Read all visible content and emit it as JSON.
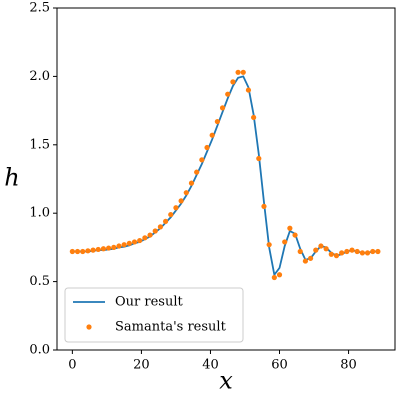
{
  "chart_data": {
    "type": "line",
    "xlabel": "x",
    "ylabel": "h",
    "x": [
      0,
      1.5,
      3,
      4.5,
      6,
      7.5,
      9,
      10.5,
      12,
      13.5,
      15,
      16.5,
      18,
      19.5,
      21,
      22.5,
      24,
      25.5,
      27,
      28.5,
      30,
      31.5,
      33,
      34.5,
      36,
      37.5,
      39,
      40.5,
      42,
      43.5,
      45,
      46.5,
      48,
      49.5,
      51,
      52.5,
      54,
      55.5,
      57,
      58.5,
      60,
      61.5,
      63,
      64.5,
      66,
      67.5,
      69,
      70.5,
      72,
      73.5,
      75,
      76.5,
      78,
      79.5,
      81,
      82.5,
      84,
      85.5,
      87,
      88.5
    ],
    "series": [
      {
        "name": "Our result",
        "style": "line",
        "color": "#1f77b4",
        "values": [
          0.72,
          0.72,
          0.72,
          0.72,
          0.725,
          0.73,
          0.73,
          0.735,
          0.74,
          0.75,
          0.755,
          0.765,
          0.78,
          0.79,
          0.81,
          0.83,
          0.86,
          0.89,
          0.93,
          0.97,
          1.02,
          1.07,
          1.13,
          1.2,
          1.28,
          1.36,
          1.45,
          1.54,
          1.64,
          1.74,
          1.84,
          1.93,
          1.99,
          2.0,
          1.92,
          1.72,
          1.43,
          1.08,
          0.75,
          0.55,
          0.6,
          0.76,
          0.87,
          0.85,
          0.74,
          0.66,
          0.67,
          0.72,
          0.76,
          0.75,
          0.71,
          0.69,
          0.7,
          0.72,
          0.73,
          0.72,
          0.71,
          0.71,
          0.72,
          0.72
        ]
      },
      {
        "name": "Samanta's result",
        "style": "points",
        "color": "#ff7f0e",
        "values": [
          0.72,
          0.72,
          0.72,
          0.725,
          0.73,
          0.735,
          0.74,
          0.745,
          0.75,
          0.76,
          0.77,
          0.78,
          0.79,
          0.8,
          0.82,
          0.84,
          0.87,
          0.9,
          0.94,
          0.99,
          1.04,
          1.09,
          1.15,
          1.22,
          1.3,
          1.39,
          1.48,
          1.57,
          1.67,
          1.77,
          1.87,
          1.96,
          2.03,
          2.03,
          1.9,
          1.7,
          1.4,
          1.05,
          0.77,
          0.53,
          0.55,
          0.79,
          0.89,
          0.84,
          0.72,
          0.65,
          0.67,
          0.73,
          0.76,
          0.74,
          0.7,
          0.69,
          0.71,
          0.72,
          0.73,
          0.72,
          0.71,
          0.71,
          0.72,
          0.72
        ]
      }
    ],
    "xlim": [
      -4.45,
      93.45
    ],
    "ylim": [
      0,
      2.5
    ],
    "xticks": [
      0,
      20,
      40,
      60,
      80
    ],
    "yticks": [
      {
        "value": 0,
        "label": "0.0"
      },
      {
        "value": 0.5,
        "label": "0.5"
      },
      {
        "value": 1,
        "label": "1.0"
      },
      {
        "value": 1.5,
        "label": "1.5"
      },
      {
        "value": 2,
        "label": "2.0"
      },
      {
        "value": 2.5,
        "label": "2.5"
      }
    ],
    "legend": "lower left",
    "grid": false
  }
}
